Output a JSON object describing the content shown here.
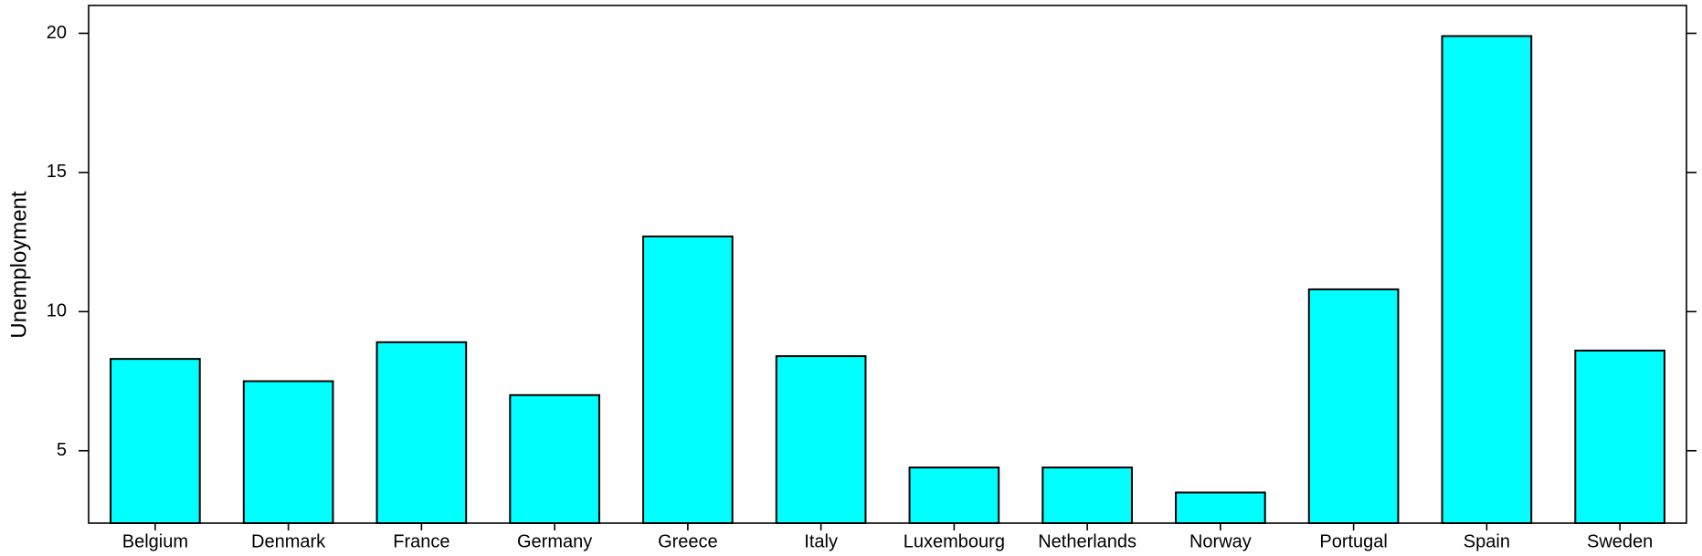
{
  "chart_data": {
    "type": "bar",
    "title": "",
    "xlabel": "",
    "ylabel": "Unemployment",
    "categories": [
      "Belgium",
      "Denmark",
      "France",
      "Germany",
      "Greece",
      "Italy",
      "Luxembourg",
      "Netherlands",
      "Norway",
      "Portugal",
      "Spain",
      "Sweden"
    ],
    "values": [
      8.3,
      7.5,
      8.9,
      7.0,
      12.7,
      8.4,
      4.4,
      4.4,
      3.5,
      10.8,
      19.9,
      8.6
    ],
    "ylim": [
      2.4,
      21.0
    ],
    "yticks": [
      5,
      10,
      15,
      20
    ],
    "bar_color": "#00FFFF",
    "grid": false,
    "legend": "none"
  }
}
